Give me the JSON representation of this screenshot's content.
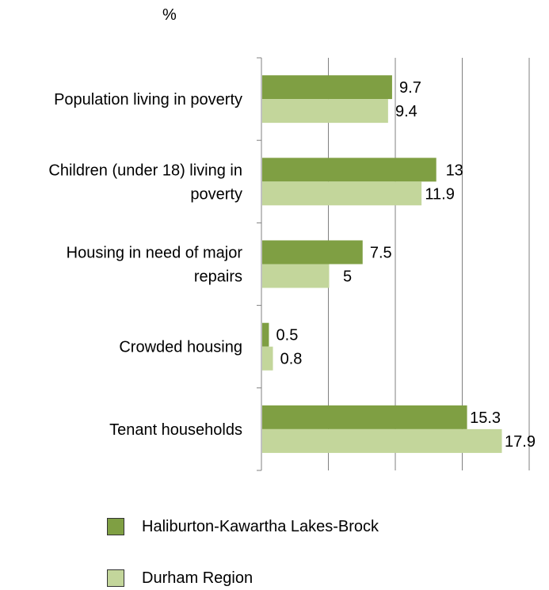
{
  "unit_label": "%",
  "chart_data": {
    "type": "bar",
    "orientation": "horizontal",
    "ylabel": "%",
    "categories": [
      [
        "Population living in poverty"
      ],
      [
        "Children (under 18) living in",
        "poverty"
      ],
      [
        "Housing in need of major",
        "repairs"
      ],
      [
        "Crowded housing"
      ],
      [
        "Tenant households"
      ]
    ],
    "series": [
      {
        "name": "Haliburton-Kawartha Lakes-Brock",
        "color": "#7F9F43",
        "values": [
          9.7,
          13,
          7.5,
          0.5,
          15.3
        ]
      },
      {
        "name": "Durham Region",
        "color": "#C3D69B",
        "values": [
          9.4,
          11.9,
          5,
          0.8,
          17.9
        ]
      }
    ],
    "xlim": [
      0,
      20
    ],
    "grid": true,
    "legend": "bottom"
  }
}
